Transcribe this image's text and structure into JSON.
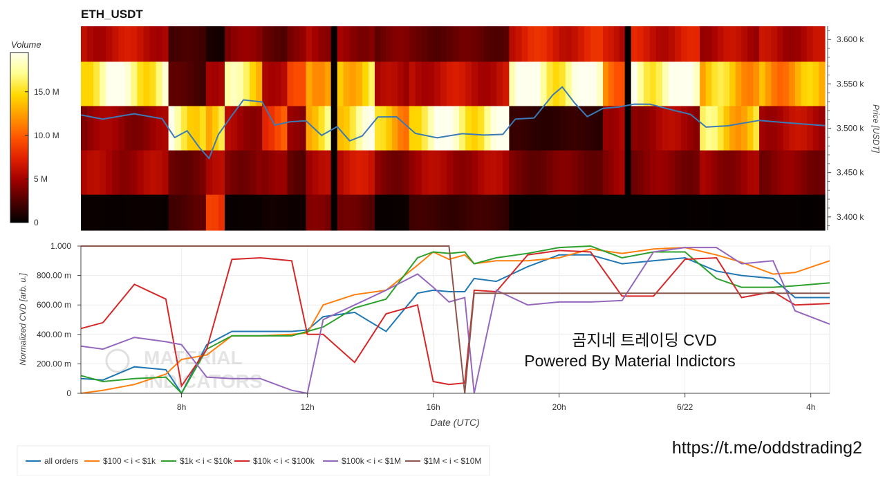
{
  "colors": {
    "all_orders": "#1f77b4",
    "s100_1k": "#ff7f0e",
    "s1k_10k": "#2ca02c",
    "s10k_100k": "#d62728",
    "s100k_1m": "#9467bd",
    "s1m_10m": "#8c564b",
    "price_line": "#3b7ab5"
  },
  "watermark": {
    "line1": "MATERIAL",
    "line2": "INDICATORS"
  },
  "overlay": {
    "title_korean": "곰지네 트레이딩 CVD",
    "powered_by": "Powered By Material Indictors",
    "link": "https://t.me/oddstrading2"
  },
  "chart_data": [
    {
      "type": "heatmap",
      "title": "ETH_USDT",
      "ylabel": "Price [USDT]",
      "ylim": [
        3385,
        3615
      ],
      "y_ticks": [
        {
          "value": 3400,
          "label": "3.400 k"
        },
        {
          "value": 3450,
          "label": "3.450 k"
        },
        {
          "value": 3500,
          "label": "3.500 k"
        },
        {
          "value": 3550,
          "label": "3.550 k"
        },
        {
          "value": 3600,
          "label": "3.600 k"
        }
      ],
      "x_range_hours": [
        4.8,
        28.6
      ],
      "colorbar": {
        "title": "Volume",
        "range": [
          0,
          19500000
        ],
        "ticks": [
          {
            "value": 0,
            "label": "0"
          },
          {
            "value": 5000000,
            "label": "5 M"
          },
          {
            "value": 10000000,
            "label": "10.0 M"
          },
          {
            "value": 15000000,
            "label": "15.0 M"
          }
        ],
        "palette": [
          "#000000",
          "#4d0000",
          "#a00000",
          "#e02000",
          "#ff5500",
          "#ff9900",
          "#ffd800",
          "#ffff90",
          "#ffffee"
        ]
      },
      "price_bands": [
        {
          "from": 3575,
          "to": 3615
        },
        {
          "from": 3525,
          "to": 3575
        },
        {
          "from": 3475,
          "to": 3525
        },
        {
          "from": 3425,
          "to": 3475
        },
        {
          "from": 3385,
          "to": 3425
        }
      ],
      "volume_segments": [
        {
          "x0": 4.8,
          "x1": 7.6,
          "band_volumes": [
            6.0,
            17.5,
            4.5,
            5.0,
            0.3
          ]
        },
        {
          "x0": 7.6,
          "x1": 8.8,
          "band_volumes": [
            2.0,
            2.5,
            17.0,
            3.5,
            2.5
          ]
        },
        {
          "x0": 8.8,
          "x1": 9.4,
          "band_volumes": [
            0.8,
            6.0,
            15.0,
            5.0,
            7.5
          ]
        },
        {
          "x0": 9.4,
          "x1": 10.6,
          "band_volumes": [
            4.0,
            15.5,
            5.0,
            4.0,
            0.3
          ]
        },
        {
          "x0": 10.6,
          "x1": 11.4,
          "band_volumes": [
            3.0,
            6.0,
            9.0,
            4.0,
            0.5
          ]
        },
        {
          "x0": 11.4,
          "x1": 12.0,
          "band_volumes": [
            4.0,
            8.0,
            4.0,
            3.0,
            0.5
          ]
        },
        {
          "x0": 12.0,
          "x1": 12.8,
          "band_volumes": [
            5.0,
            14.0,
            15.5,
            5.0,
            3.5
          ]
        },
        {
          "x0": 12.8,
          "x1": 13.0,
          "band_volumes": [
            0.2,
            0.2,
            0.2,
            0.2,
            0.2
          ]
        },
        {
          "x0": 13.0,
          "x1": 14.2,
          "band_volumes": [
            4.5,
            15.0,
            16.5,
            6.0,
            3.0
          ]
        },
        {
          "x0": 14.2,
          "x1": 15.3,
          "band_volumes": [
            3.5,
            5.0,
            13.0,
            4.0,
            0.3
          ]
        },
        {
          "x0": 15.3,
          "x1": 18.5,
          "band_volumes": [
            3.0,
            6.0,
            17.5,
            5.0,
            1.8
          ]
        },
        {
          "x0": 18.5,
          "x1": 21.5,
          "band_volumes": [
            7.0,
            18.0,
            1.5,
            3.5,
            0.2
          ]
        },
        {
          "x0": 21.5,
          "x1": 22.2,
          "band_volumes": [
            6.0,
            11.5,
            5.5,
            4.5,
            0.2
          ]
        },
        {
          "x0": 22.2,
          "x1": 22.4,
          "band_volumes": [
            0.2,
            0.2,
            0.2,
            0.2,
            0.2
          ]
        },
        {
          "x0": 22.4,
          "x1": 24.6,
          "band_volumes": [
            6.5,
            18.5,
            5.0,
            4.0,
            0.2
          ]
        },
        {
          "x0": 24.6,
          "x1": 26.5,
          "band_volumes": [
            5.5,
            13.5,
            14.5,
            4.5,
            0.2
          ]
        },
        {
          "x0": 26.5,
          "x1": 28.6,
          "band_volumes": [
            5.5,
            12.5,
            5.5,
            4.0,
            0.2
          ]
        }
      ],
      "series": [
        {
          "name": "price",
          "x": [
            4.8,
            5.5,
            6.5,
            7.4,
            7.8,
            8.2,
            8.6,
            8.9,
            9.2,
            9.6,
            10.0,
            10.6,
            11.0,
            11.5,
            12.0,
            12.5,
            13.0,
            13.4,
            13.8,
            14.3,
            14.9,
            15.5,
            16.2,
            17.0,
            17.7,
            18.3,
            18.7,
            19.3,
            19.9,
            20.2,
            20.6,
            21.0,
            21.5,
            22.0,
            22.5,
            23.0,
            23.8,
            24.3,
            24.8,
            25.5,
            26.5,
            27.5,
            28.6
          ],
          "y": [
            3515,
            3512,
            3514,
            3512,
            3490,
            3495,
            3480,
            3465,
            3492,
            3515,
            3530,
            3530,
            3505,
            3505,
            3510,
            3492,
            3500,
            3488,
            3490,
            3512,
            3515,
            3492,
            3490,
            3495,
            3490,
            3495,
            3510,
            3510,
            3540,
            3545,
            3528,
            3515,
            3520,
            3525,
            3528,
            3525,
            3522,
            3515,
            3500,
            3505,
            3507,
            3506,
            3503
          ]
        }
      ]
    },
    {
      "type": "line",
      "xlabel": "Date (UTC)",
      "ylabel": "Normalized CVD [arb. u.]",
      "ylim": [
        0,
        1000
      ],
      "grid": true,
      "legend": "bottom-left",
      "x_ticks": [
        {
          "value": 8,
          "label": "8h"
        },
        {
          "value": 12,
          "label": "12h"
        },
        {
          "value": 16,
          "label": "16h"
        },
        {
          "value": 20,
          "label": "20h"
        },
        {
          "value": 24,
          "label": "6/22"
        },
        {
          "value": 28,
          "label": "4h"
        }
      ],
      "y_ticks": [
        {
          "value": 0,
          "label": "0"
        },
        {
          "value": 200,
          "label": "200.00 m"
        },
        {
          "value": 400,
          "label": "400.00 m"
        },
        {
          "value": 600,
          "label": "600.00 m"
        },
        {
          "value": 800,
          "label": "800.00 m"
        },
        {
          "value": 1000,
          "label": "1.000"
        }
      ],
      "x": [
        4.8,
        5.5,
        6.5,
        7.5,
        8.0,
        8.8,
        9.6,
        10.5,
        11.5,
        12.0,
        12.5,
        13.5,
        14.5,
        15.5,
        16.0,
        16.5,
        17.0,
        17.3,
        18.0,
        19.0,
        20.0,
        21.0,
        22.0,
        23.0,
        24.0,
        25.0,
        25.8,
        26.8,
        27.5,
        28.6
      ],
      "series": [
        {
          "name": "all orders",
          "values": [
            100,
            90,
            180,
            160,
            0,
            330,
            420,
            420,
            420,
            430,
            520,
            550,
            420,
            680,
            700,
            690,
            690,
            780,
            760,
            860,
            940,
            940,
            880,
            900,
            920,
            830,
            800,
            780,
            650,
            650
          ]
        },
        {
          "name": "$100 < i < $1k",
          "values": [
            0,
            20,
            60,
            130,
            230,
            260,
            390,
            390,
            400,
            410,
            600,
            670,
            700,
            870,
            960,
            910,
            940,
            880,
            900,
            900,
            920,
            980,
            950,
            980,
            990,
            940,
            890,
            810,
            820,
            900
          ]
        },
        {
          "name": "$1k < i < $10k",
          "values": [
            120,
            80,
            100,
            110,
            0,
            300,
            390,
            390,
            390,
            420,
            450,
            580,
            640,
            920,
            960,
            950,
            960,
            880,
            920,
            950,
            990,
            1000,
            920,
            960,
            960,
            780,
            720,
            720,
            730,
            750
          ]
        },
        {
          "name": "$10k < i < $100k",
          "values": [
            440,
            480,
            740,
            640,
            50,
            300,
            910,
            920,
            900,
            400,
            400,
            210,
            540,
            600,
            80,
            60,
            70,
            700,
            690,
            940,
            970,
            960,
            660,
            660,
            910,
            920,
            650,
            690,
            600,
            610
          ]
        },
        {
          "name": "$100k < i < $1M",
          "values": [
            320,
            300,
            380,
            350,
            330,
            110,
            100,
            100,
            20,
            0,
            500,
            600,
            700,
            810,
            720,
            620,
            650,
            0,
            700,
            600,
            620,
            620,
            630,
            960,
            990,
            990,
            880,
            900,
            560,
            470
          ]
        },
        {
          "name": "$1M < i < $10M",
          "values": [
            1000,
            1000,
            1000,
            1000,
            1000,
            1000,
            1000,
            1000,
            1000,
            1000,
            1000,
            1000,
            1000,
            1000,
            1000,
            1000,
            0,
            680,
            680,
            680,
            680,
            680,
            680,
            680,
            680,
            680,
            680,
            680,
            680,
            680
          ]
        }
      ]
    }
  ]
}
